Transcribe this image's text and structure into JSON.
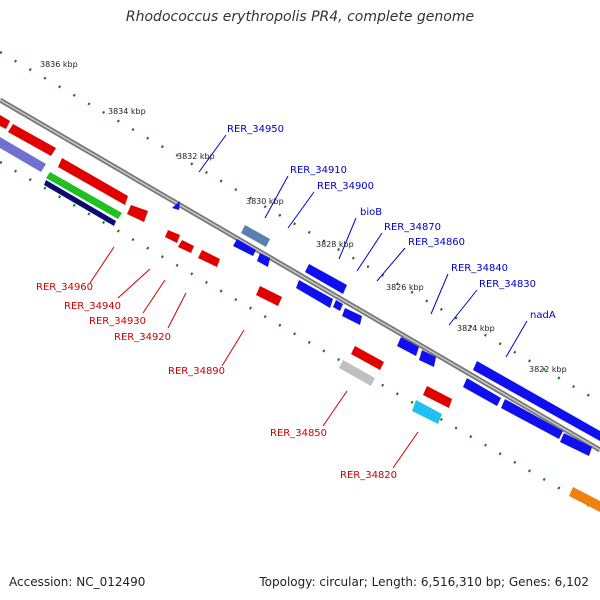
{
  "title": "Rhodococcus erythropolis PR4, complete genome",
  "footer": {
    "accession": "Accession: NC_012490",
    "summary": "Topology: circular; Length: 6,516,310 bp; Genes: 6,102"
  },
  "colors": {
    "forward_gene": "#1010ee",
    "reverse_gene": "#ee1010",
    "forward_label": "#0000cc",
    "reverse_label": "#cc0000",
    "backbone": "#8a8a8a",
    "ticks": "#1a7a1a"
  },
  "scale_labels": [
    "3836 kbp",
    "3834 kbp",
    "3832 kbp",
    "3830 kbp",
    "3828 kbp",
    "3826 kbp",
    "3824 kbp",
    "3822 kbp"
  ],
  "forward_labels": [
    "RER_34950",
    "RER_34910",
    "RER_34900",
    "bioB",
    "RER_34870",
    "RER_34860",
    "RER_34840",
    "RER_34830",
    "nadA"
  ],
  "reverse_labels": [
    "RER_34960",
    "RER_34940",
    "RER_34930",
    "RER_34920",
    "RER_34890",
    "RER_34850",
    "RER_34820"
  ]
}
